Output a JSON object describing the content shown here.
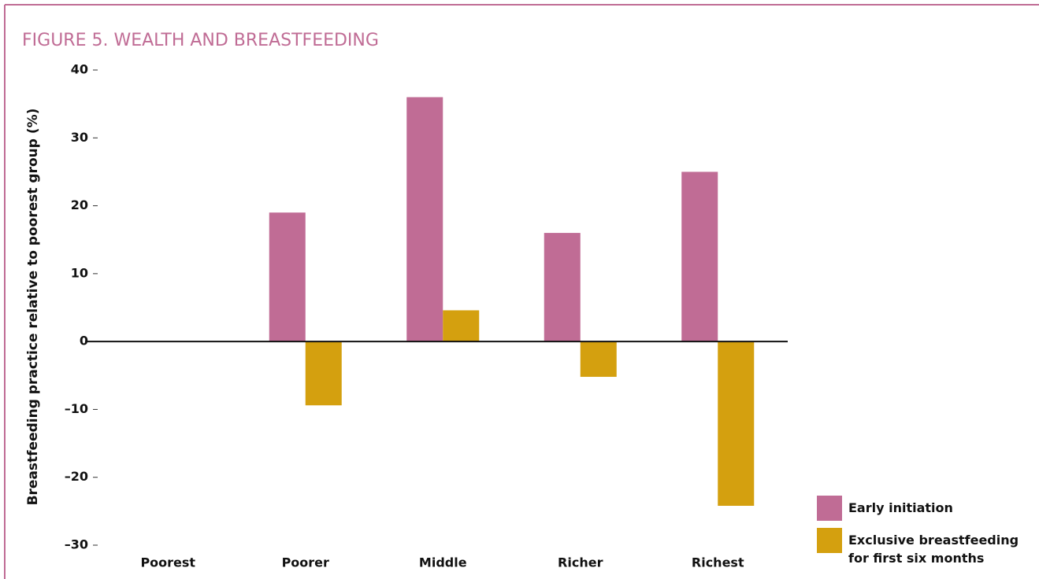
{
  "chart_data": {
    "type": "bar",
    "title": "FIGURE 5. WEALTH AND BREASTFEEDING",
    "y_label": "Breastfeeding practice relative to poorest group (%)",
    "categories": [
      "Poorest",
      "Poorer",
      "Middle",
      "Richer",
      "Richest"
    ],
    "series": [
      {
        "name": "Early initiation",
        "color": "#c06c95",
        "values": [
          0,
          19,
          36,
          16,
          25
        ]
      },
      {
        "name": "Exclusive breastfeeding for first six months",
        "color": "#d4a00f",
        "values": [
          0,
          -9.4,
          4.6,
          -5.2,
          -24.2
        ]
      }
    ],
    "ylim": [
      -30,
      40
    ],
    "yticks": [
      {
        "value": -30,
        "label": "–30"
      },
      {
        "value": -20,
        "label": "–20"
      },
      {
        "value": -10,
        "label": "–10"
      },
      0,
      10,
      20,
      30,
      40
    ],
    "legend": "bottom-right"
  }
}
